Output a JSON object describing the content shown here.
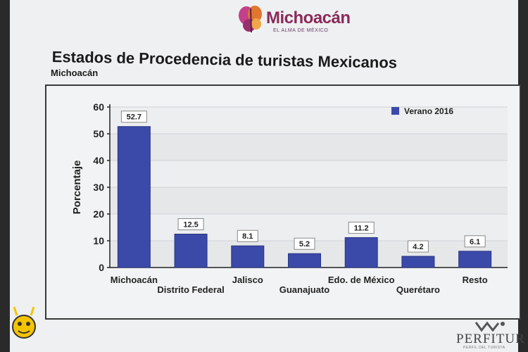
{
  "header": {
    "logo_text": "Michoacán",
    "logo_tagline": "EL ALMA DE MÉXICO",
    "title": "Estados de Procedencia de turistas Mexicanos",
    "subtitle": "Michoacán"
  },
  "footer": {
    "brand": "PERFITUR",
    "brand_sub": "PERFIL DEL TURISTA"
  },
  "colors": {
    "bar": "#3b4aa8",
    "bar_dark": "#2a3585",
    "legend_swatch": "#3b4aa8",
    "logo_accent": "#8a2a5a"
  },
  "chart_data": {
    "type": "bar",
    "categories": [
      "Michoacán",
      "Distrito Federal",
      "Jalisco",
      "Guanajuato",
      "Edo. de México",
      "Querétaro",
      "Resto"
    ],
    "series": [
      {
        "name": "Verano 2016",
        "values": [
          52.7,
          12.5,
          8.1,
          5.2,
          11.2,
          4.2,
          6.1
        ]
      }
    ],
    "data_labels": [
      "52.7",
      "12.5",
      "8.1",
      "5.2",
      "11.2",
      "4.2",
      "6.1"
    ],
    "ylabel": "Porcentaje",
    "xlabel": "",
    "ylim": [
      0,
      60
    ],
    "yticks": [
      0,
      10,
      20,
      30,
      40,
      50,
      60
    ],
    "grid": true,
    "legend": "top-right"
  }
}
